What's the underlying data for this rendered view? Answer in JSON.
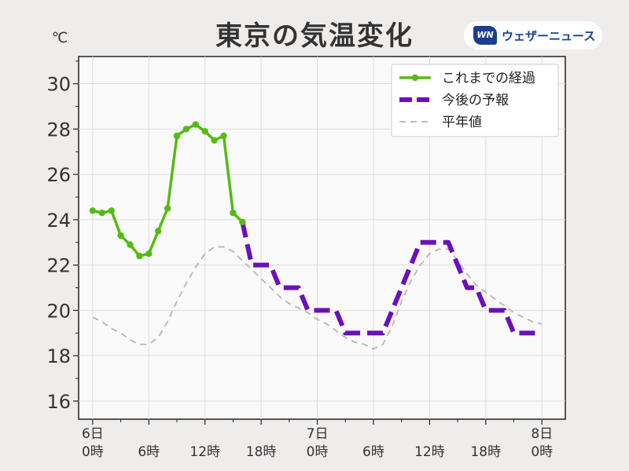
{
  "header": {
    "title": "東京の気温変化",
    "logo_mark": "WN",
    "logo_text": "ウェザーニュース",
    "brand_color": "#1a3f8f"
  },
  "chart_data": {
    "type": "line",
    "title": "東京の気温変化",
    "ylabel": "℃",
    "xlabel": "",
    "ylim": [
      15.2,
      31.2
    ],
    "xlim": [
      -1.5,
      50.5
    ],
    "yticks": [
      16,
      18,
      20,
      22,
      24,
      26,
      28,
      30
    ],
    "x_unit": "hours since 6日 0時",
    "xticks": [
      {
        "x": 0,
        "day": "6日",
        "hour": "0時"
      },
      {
        "x": 6,
        "day": "",
        "hour": "6時"
      },
      {
        "x": 12,
        "day": "",
        "hour": "12時"
      },
      {
        "x": 18,
        "day": "",
        "hour": "18時"
      },
      {
        "x": 24,
        "day": "7日",
        "hour": "0時"
      },
      {
        "x": 30,
        "day": "",
        "hour": "6時"
      },
      {
        "x": 36,
        "day": "",
        "hour": "12時"
      },
      {
        "x": 42,
        "day": "",
        "hour": "18時"
      },
      {
        "x": 48,
        "day": "8日",
        "hour": "0時"
      }
    ],
    "grid": true,
    "legend_position": "top-right",
    "series": [
      {
        "name": "これまでの経過",
        "style": "solid-markers",
        "color": "#55bb11",
        "x": [
          0,
          1,
          2,
          3,
          4,
          5,
          6,
          7,
          8,
          9,
          10,
          11,
          12,
          13,
          14,
          15,
          16,
          17
        ],
        "values": [
          24.4,
          24.3,
          24.4,
          23.3,
          22.9,
          22.4,
          22.5,
          23.5,
          24.5,
          27.7,
          28.0,
          28.2,
          27.9,
          27.5,
          27.7,
          24.3,
          23.9,
          null
        ]
      },
      {
        "name": "今後の予報",
        "style": "thick-dashed-step",
        "color": "#6a11bb",
        "x": [
          16,
          17,
          18,
          19,
          20,
          21,
          22,
          23,
          24,
          25,
          26,
          27,
          28,
          29,
          30,
          31,
          32,
          33,
          34,
          35,
          36,
          37,
          38,
          39,
          40,
          41,
          42,
          43,
          44,
          45,
          46,
          47,
          48
        ],
        "values": [
          23.9,
          22.0,
          22.0,
          22.0,
          21.0,
          21.0,
          21.0,
          20.0,
          20.0,
          20.0,
          20.0,
          19.0,
          19.0,
          19.0,
          19.0,
          19.0,
          20.0,
          21.0,
          22.0,
          23.0,
          23.0,
          23.0,
          23.0,
          22.0,
          21.0,
          21.0,
          20.0,
          20.0,
          20.0,
          19.0,
          19.0,
          19.0,
          19.0
        ]
      },
      {
        "name": "平年値",
        "style": "dashed",
        "color": "#bbbbbb",
        "x": [
          0,
          1,
          2,
          3,
          4,
          5,
          6,
          7,
          8,
          9,
          10,
          11,
          12,
          13,
          14,
          15,
          16,
          17,
          18,
          19,
          20,
          21,
          22,
          23,
          24,
          25,
          26,
          27,
          28,
          29,
          30,
          31,
          32,
          33,
          34,
          35,
          36,
          37,
          38,
          39,
          40,
          41,
          42,
          43,
          44,
          45,
          46,
          47,
          48
        ],
        "values": [
          19.7,
          19.5,
          19.2,
          19.0,
          18.7,
          18.5,
          18.5,
          18.8,
          19.5,
          20.4,
          21.2,
          21.9,
          22.5,
          22.8,
          22.8,
          22.6,
          22.2,
          21.8,
          21.4,
          21.0,
          20.6,
          20.3,
          20.1,
          19.9,
          19.6,
          19.4,
          19.1,
          18.8,
          18.6,
          18.5,
          18.3,
          18.5,
          19.3,
          20.4,
          21.3,
          22.0,
          22.5,
          22.7,
          22.7,
          22.2,
          21.6,
          21.1,
          20.8,
          20.5,
          20.2,
          19.9,
          19.7,
          19.5,
          19.4
        ]
      }
    ]
  }
}
